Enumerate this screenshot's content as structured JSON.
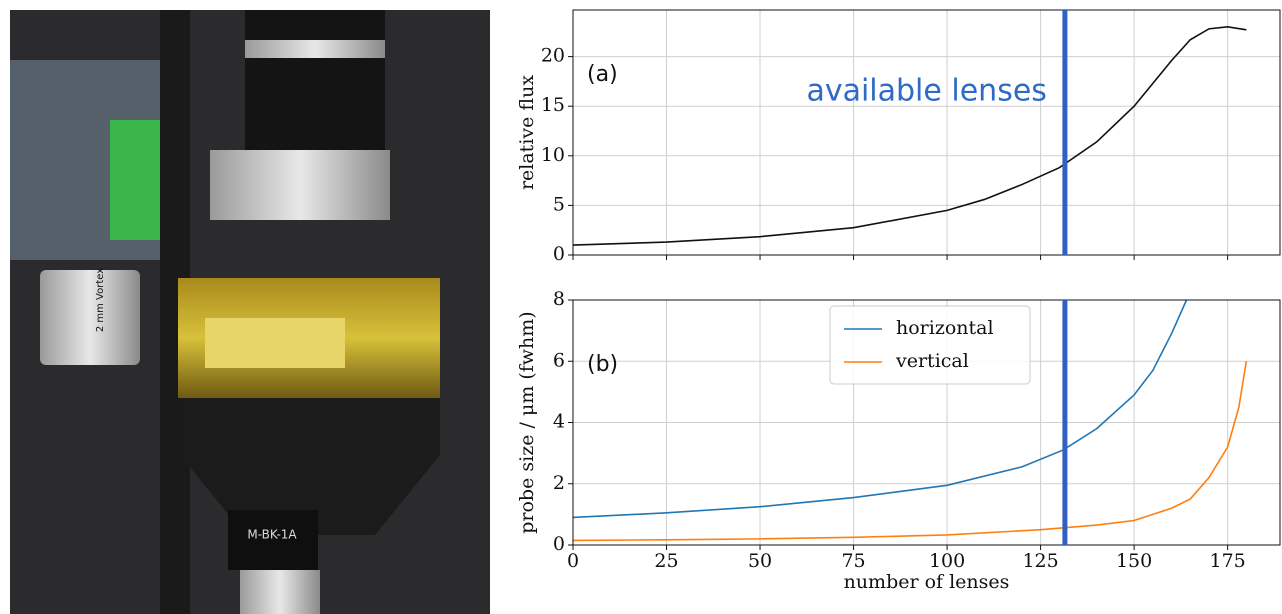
{
  "photo_labels": [
    "2 mm Vortex",
    "M-BK-1A"
  ],
  "chart_data": [
    {
      "type": "line",
      "panel_label": "(a)",
      "ylabel": "relative flux",
      "annotation": "available lenses",
      "annotation_color": "#2e6bc4",
      "vline": 131.5,
      "vline_color": "#3060c0",
      "xlim": [
        0,
        189
      ],
      "xticks": [
        0,
        25,
        50,
        75,
        100,
        125,
        150,
        175
      ],
      "show_xtick_labels": false,
      "ylim": [
        0,
        24.7
      ],
      "yticks": [
        0,
        5,
        10,
        15,
        20
      ],
      "grid": true,
      "series": [
        {
          "name": null,
          "color": "#111111",
          "x": [
            0,
            25,
            50,
            75,
            100,
            110,
            120,
            130,
            140,
            150,
            160,
            165,
            170,
            175,
            180
          ],
          "values": [
            1.0,
            1.3,
            1.85,
            2.75,
            4.5,
            5.6,
            7.1,
            8.8,
            11.4,
            15.0,
            19.6,
            21.7,
            22.8,
            23.0,
            22.7
          ]
        }
      ]
    },
    {
      "type": "line",
      "panel_label": "(b)",
      "ylabel": "probe size / μm (fwhm)",
      "xlabel": "number of lenses",
      "vline": 131.5,
      "vline_color": "#3060c0",
      "xlim": [
        0,
        189
      ],
      "xticks": [
        0,
        25,
        50,
        75,
        100,
        125,
        150,
        175
      ],
      "show_xtick_labels": true,
      "ylim": [
        0,
        8
      ],
      "yticks": [
        0,
        2,
        4,
        6,
        8
      ],
      "grid": true,
      "legend": "upper center",
      "series": [
        {
          "name": "horizontal",
          "color": "#1f77b4",
          "x": [
            0,
            25,
            50,
            75,
            100,
            120,
            131,
            140,
            150,
            155,
            160,
            164
          ],
          "values": [
            0.9,
            1.05,
            1.25,
            1.55,
            1.95,
            2.55,
            3.1,
            3.8,
            4.9,
            5.7,
            6.9,
            8.0
          ]
        },
        {
          "name": "vertical",
          "color": "#ff7f0e",
          "x": [
            0,
            25,
            50,
            75,
            100,
            125,
            140,
            150,
            160,
            165,
            170,
            175,
            178,
            180
          ],
          "values": [
            0.15,
            0.17,
            0.2,
            0.25,
            0.33,
            0.5,
            0.65,
            0.8,
            1.2,
            1.5,
            2.2,
            3.2,
            4.5,
            6.0
          ]
        }
      ]
    }
  ]
}
